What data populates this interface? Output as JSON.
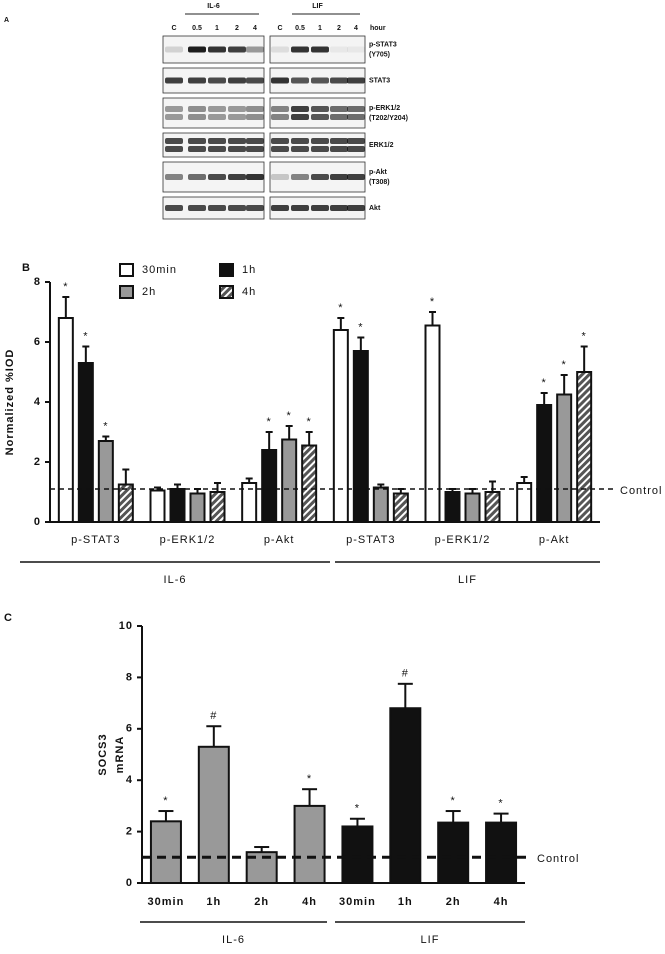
{
  "blot": {
    "panel": "A",
    "groups": [
      "IL-6",
      "LIF"
    ],
    "lanes": [
      "C",
      "0.5",
      "1",
      "2",
      "4"
    ],
    "unit": "hour",
    "rows": [
      [
        "p-STAT3",
        "(Y705)"
      ],
      [
        "STAT3"
      ],
      [
        "p-ERK1/2",
        "(T202/Y204)"
      ],
      [
        "ERK1/2"
      ],
      [
        "p-Akt",
        "(T308)"
      ],
      [
        "Akt"
      ]
    ]
  },
  "chart_data": [
    {
      "type": "bar",
      "panel": "B",
      "ylabel": [
        "Normalized %IOD"
      ],
      "categories": [
        "p-STAT3",
        "p-ERK1/2",
        "p-Akt",
        "p-STAT3",
        "p-ERK1/2",
        "p-Akt"
      ],
      "group_labels": [
        "IL-6",
        "LIF"
      ],
      "ylim": [
        0,
        8
      ],
      "yticks": [
        0,
        2,
        4,
        6,
        8
      ],
      "reference_line": {
        "value": 1.1,
        "label": "Control"
      },
      "series": [
        {
          "name": "30min",
          "color": "#ffffff",
          "values": [
            6.8,
            1.05,
            1.3,
            6.4,
            6.55,
            1.3
          ],
          "errors": [
            0.7,
            0.1,
            0.15,
            0.4,
            0.45,
            0.2
          ],
          "markers": [
            "*",
            null,
            null,
            "*",
            "*",
            null
          ]
        },
        {
          "name": "1h",
          "color": "#111111",
          "values": [
            5.3,
            1.1,
            2.4,
            5.7,
            1.0,
            3.9
          ],
          "errors": [
            0.55,
            0.15,
            0.6,
            0.45,
            0.1,
            0.4
          ],
          "markers": [
            "*",
            null,
            "*",
            "*",
            null,
            "*"
          ]
        },
        {
          "name": "2h",
          "color": "#999999",
          "values": [
            2.7,
            0.95,
            2.75,
            1.15,
            0.95,
            4.25
          ],
          "errors": [
            0.15,
            0.15,
            0.45,
            0.1,
            0.15,
            0.65
          ],
          "markers": [
            "*",
            null,
            "*",
            null,
            null,
            "*"
          ]
        },
        {
          "name": "4h",
          "color": "#555555",
          "pattern": "hatch",
          "values": [
            1.25,
            1.0,
            2.55,
            0.95,
            1.0,
            5.0
          ],
          "errors": [
            0.5,
            0.3,
            0.45,
            0.15,
            0.35,
            0.85
          ],
          "markers": [
            null,
            null,
            "*",
            null,
            null,
            "*"
          ]
        }
      ]
    },
    {
      "type": "bar",
      "panel": "C",
      "ylabel": [
        "SOCS3",
        "mRNA"
      ],
      "categories": [
        "30min",
        "1h",
        "2h",
        "4h",
        "30min",
        "1h",
        "2h",
        "4h"
      ],
      "group_labels": [
        "IL-6",
        "LIF"
      ],
      "ylim": [
        0,
        10
      ],
      "yticks": [
        0,
        2,
        4,
        6,
        8,
        10
      ],
      "reference_line": {
        "value": 1.0,
        "label": "Control"
      },
      "values": [
        2.4,
        5.3,
        1.2,
        3.0,
        2.2,
        6.8,
        2.35,
        2.35
      ],
      "errors": [
        0.4,
        0.8,
        0.2,
        0.65,
        0.3,
        0.95,
        0.45,
        0.35
      ],
      "colors": [
        "#999999",
        "#999999",
        "#999999",
        "#999999",
        "#111111",
        "#111111",
        "#111111",
        "#111111"
      ],
      "markers": [
        "*",
        "#",
        null,
        "*",
        "*",
        "#",
        "*",
        "*"
      ]
    }
  ]
}
